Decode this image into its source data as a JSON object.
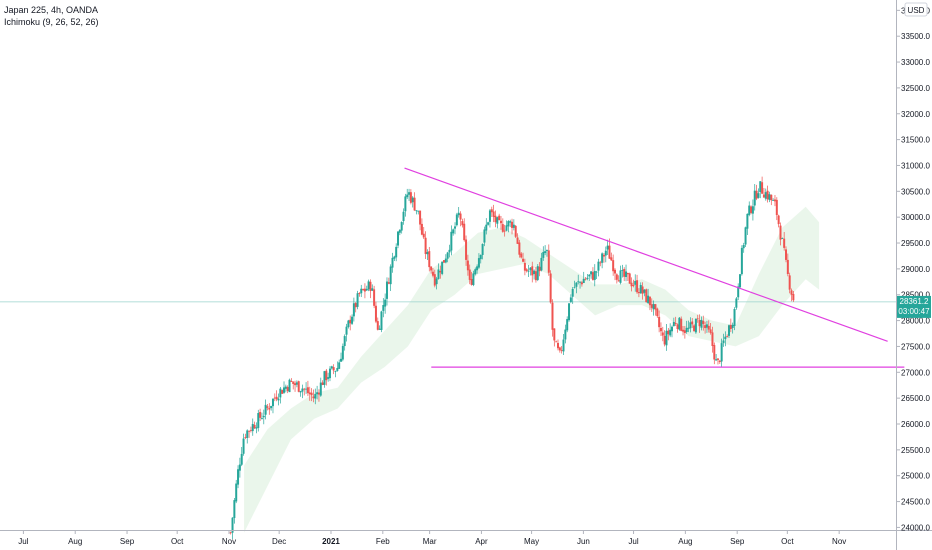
{
  "legend": {
    "symbol": "Japan 225, 4h, OANDA",
    "indicator": "Ichimoku (9, 26, 52, 26)"
  },
  "currency": "USD",
  "current": {
    "price": "28361.2",
    "countdown": "03:00:47",
    "value": 28361.2,
    "color": "#26a69a"
  },
  "colors": {
    "up": "#26a69a",
    "down": "#ef5350",
    "trendline": "#e040e0",
    "cloud_bull": "#e8f5e9",
    "cloud_bear": "#fdecec",
    "price_line": "#9ad3cd"
  },
  "chart_data": {
    "type": "candlestick",
    "title": "Japan 225, 4h, OANDA",
    "indicator": "Ichimoku (9, 26, 52, 26)",
    "x_tick_labels": [
      "Jul",
      "Aug",
      "Sep",
      "Oct",
      "Nov",
      "Dec",
      "2021",
      "Feb",
      "Mar",
      "Apr",
      "May",
      "Jun",
      "Jul",
      "Aug",
      "Sep",
      "Oct",
      "Nov"
    ],
    "x_tick_dates": [
      "2020-07-01",
      "2020-08-01",
      "2020-09-01",
      "2020-10-01",
      "2020-11-01",
      "2020-12-01",
      "2021-01-01",
      "2021-02-01",
      "2021-03-01",
      "2021-04-01",
      "2021-05-01",
      "2021-06-01",
      "2021-07-01",
      "2021-08-01",
      "2021-09-01",
      "2021-10-01",
      "2021-11-01"
    ],
    "y_ticks": [
      "24000.0",
      "24500.0",
      "25000.0",
      "25500.0",
      "26000.0",
      "26500.0",
      "27000.0",
      "27500.0",
      "28000.0",
      "28500.0",
      "29000.0",
      "29500.0",
      "30000.0",
      "30500.0",
      "31000.0",
      "31500.0",
      "32000.0",
      "32500.0",
      "33000.0",
      "33500.0",
      "34000.0"
    ],
    "ylim": [
      23950,
      34200
    ],
    "price_path": [
      [
        "2020-11-02",
        23900
      ],
      [
        "2020-11-06",
        25000
      ],
      [
        "2020-11-10",
        25800
      ],
      [
        "2020-11-16",
        26000
      ],
      [
        "2020-11-24",
        26300
      ],
      [
        "2020-11-30",
        26600
      ],
      [
        "2020-12-08",
        26800
      ],
      [
        "2020-12-15",
        26700
      ],
      [
        "2020-12-22",
        26500
      ],
      [
        "2020-12-28",
        26900
      ],
      [
        "2021-01-05",
        27100
      ],
      [
        "2021-01-12",
        28000
      ],
      [
        "2021-01-18",
        28500
      ],
      [
        "2021-01-25",
        28700
      ],
      [
        "2021-01-29",
        27800
      ],
      [
        "2021-02-05",
        28900
      ],
      [
        "2021-02-10",
        29700
      ],
      [
        "2021-02-16",
        30500
      ],
      [
        "2021-02-22",
        30100
      ],
      [
        "2021-02-26",
        29400
      ],
      [
        "2021-03-04",
        28800
      ],
      [
        "2021-03-10",
        29200
      ],
      [
        "2021-03-16",
        29800
      ],
      [
        "2021-03-19",
        30100
      ],
      [
        "2021-03-25",
        28700
      ],
      [
        "2021-03-31",
        29300
      ],
      [
        "2021-04-06",
        30100
      ],
      [
        "2021-04-12",
        29800
      ],
      [
        "2021-04-20",
        29900
      ],
      [
        "2021-04-26",
        29000
      ],
      [
        "2021-05-04",
        28900
      ],
      [
        "2021-05-10",
        29400
      ],
      [
        "2021-05-14",
        27600
      ],
      [
        "2021-05-18",
        27300
      ],
      [
        "2021-05-25",
        28600
      ],
      [
        "2021-06-01",
        28800
      ],
      [
        "2021-06-08",
        28900
      ],
      [
        "2021-06-15",
        29400
      ],
      [
        "2021-06-21",
        28900
      ],
      [
        "2021-06-28",
        28800
      ],
      [
        "2021-07-05",
        28600
      ],
      [
        "2021-07-12",
        28300
      ],
      [
        "2021-07-19",
        27600
      ],
      [
        "2021-07-26",
        28000
      ],
      [
        "2021-08-02",
        27800
      ],
      [
        "2021-08-10",
        28000
      ],
      [
        "2021-08-16",
        27700
      ],
      [
        "2021-08-20",
        27100
      ],
      [
        "2021-08-24",
        27600
      ],
      [
        "2021-08-30",
        28100
      ],
      [
        "2021-09-03",
        29100
      ],
      [
        "2021-09-07",
        30000
      ],
      [
        "2021-09-14",
        30600
      ],
      [
        "2021-09-20",
        30400
      ],
      [
        "2021-09-24",
        30200
      ],
      [
        "2021-09-28",
        29500
      ],
      [
        "2021-10-01",
        28900
      ],
      [
        "2021-10-05",
        28361.2
      ]
    ],
    "cloud": [
      [
        "2020-11-10",
        23900,
        25200
      ],
      [
        "2020-11-24",
        24800,
        25900
      ],
      [
        "2020-12-08",
        25700,
        26300
      ],
      [
        "2020-12-22",
        26100,
        26600
      ],
      [
        "2021-01-05",
        26300,
        26700
      ],
      [
        "2021-01-19",
        26800,
        27300
      ],
      [
        "2021-02-02",
        27100,
        27800
      ],
      [
        "2021-02-16",
        27500,
        28300
      ],
      [
        "2021-03-02",
        28200,
        29000
      ],
      [
        "2021-03-16",
        28500,
        29300
      ],
      [
        "2021-03-30",
        28900,
        29700
      ],
      [
        "2021-04-13",
        29000,
        29800
      ],
      [
        "2021-04-27",
        29100,
        29600
      ],
      [
        "2021-05-11",
        28900,
        29300
      ],
      [
        "2021-05-25",
        28500,
        29000
      ],
      [
        "2021-06-08",
        28100,
        28700
      ],
      [
        "2021-06-22",
        28300,
        28700
      ],
      [
        "2021-07-06",
        28300,
        28800
      ],
      [
        "2021-07-20",
        28100,
        28600
      ],
      [
        "2021-08-03",
        27700,
        28200
      ],
      [
        "2021-08-17",
        27600,
        28000
      ],
      [
        "2021-08-31",
        27500,
        27900
      ],
      [
        "2021-09-14",
        27700,
        28900
      ],
      [
        "2021-09-28",
        28300,
        29800
      ],
      [
        "2021-10-12",
        28800,
        30200
      ],
      [
        "2021-10-20",
        28600,
        29900
      ]
    ],
    "trendlines": [
      {
        "from": [
          "2021-02-14",
          30950
        ],
        "to": [
          "2021-11-30",
          27600
        ]
      },
      {
        "from": [
          "2021-03-02",
          27100
        ],
        "to": [
          "2021-12-10",
          27100
        ]
      }
    ]
  }
}
